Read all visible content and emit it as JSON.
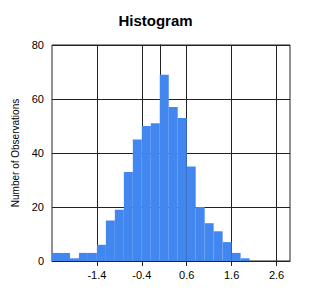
{
  "chart_data": {
    "type": "histogram",
    "title": "Histogram",
    "ylabel": "Number of Observations",
    "bins": [
      -2.4,
      -2.2,
      -2.0,
      -1.8,
      -1.6,
      -1.4,
      -1.2,
      -1.0,
      -0.8,
      -0.6,
      -0.4,
      -0.2,
      0.0,
      0.2,
      0.4,
      0.6,
      0.8,
      1.0,
      1.2,
      1.4,
      1.6,
      1.8,
      2.0
    ],
    "values": [
      3,
      3,
      1,
      3,
      3,
      6,
      15,
      19,
      33,
      45,
      50,
      51,
      69,
      57,
      53,
      35,
      20,
      14,
      11,
      7,
      3,
      1
    ],
    "color": "#4287f0",
    "xlim": [
      -2.4,
      2.9
    ],
    "xticks": [
      -1.4,
      -0.4,
      0.6,
      1.6,
      2.6
    ],
    "ylim": [
      0,
      80
    ],
    "yticks": [
      0,
      20,
      40,
      60,
      80
    ],
    "grid": true
  }
}
